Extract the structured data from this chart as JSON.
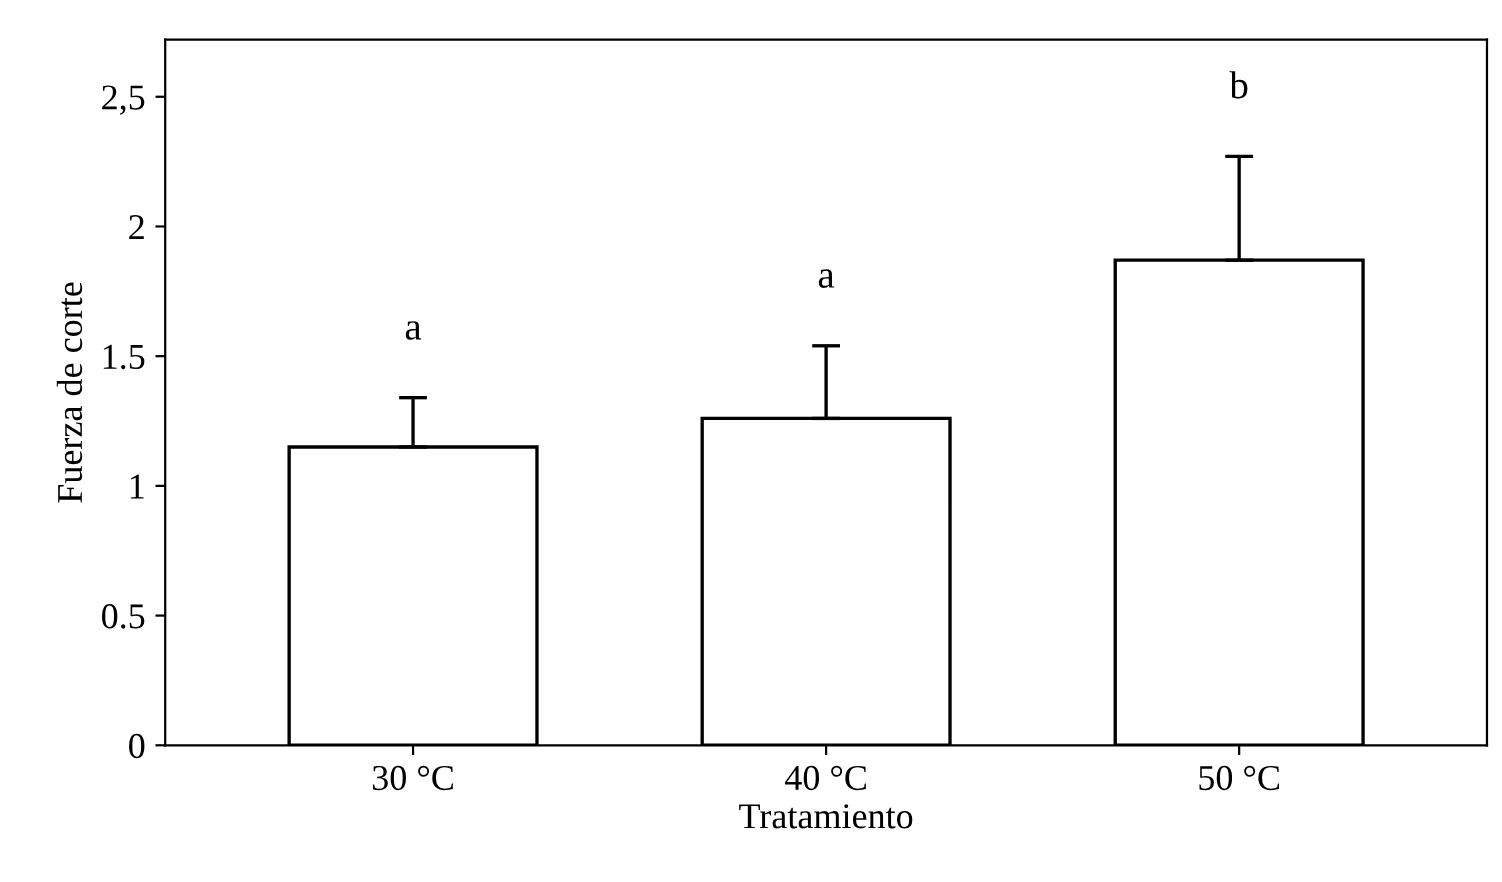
{
  "chart_data": {
    "type": "bar",
    "xlabel": "Tratamiento",
    "ylabel": "Fuerza de corte",
    "categories": [
      "30 °C",
      "40 °C",
      "50 °C"
    ],
    "values": [
      1.15,
      1.26,
      1.87
    ],
    "color": "#ffffff",
    "errors": [
      [
        1.15,
        1.34
      ],
      [
        1.26,
        1.54
      ],
      [
        1.87,
        2.27
      ]
    ],
    "ylim": [
      0,
      2.72
    ],
    "yticks": [
      0,
      0.5,
      1,
      1.5,
      2,
      {
        "value": 2.5,
        "label": "2,5"
      }
    ],
    "grid": false,
    "annotations": [
      {
        "text": "a",
        "x": "30 °C",
        "y": 1.34
      },
      {
        "text": "a",
        "x": "40 °C",
        "y": 1.54
      },
      {
        "text": "b",
        "x": "50 °C",
        "y": 2.27
      }
    ]
  }
}
